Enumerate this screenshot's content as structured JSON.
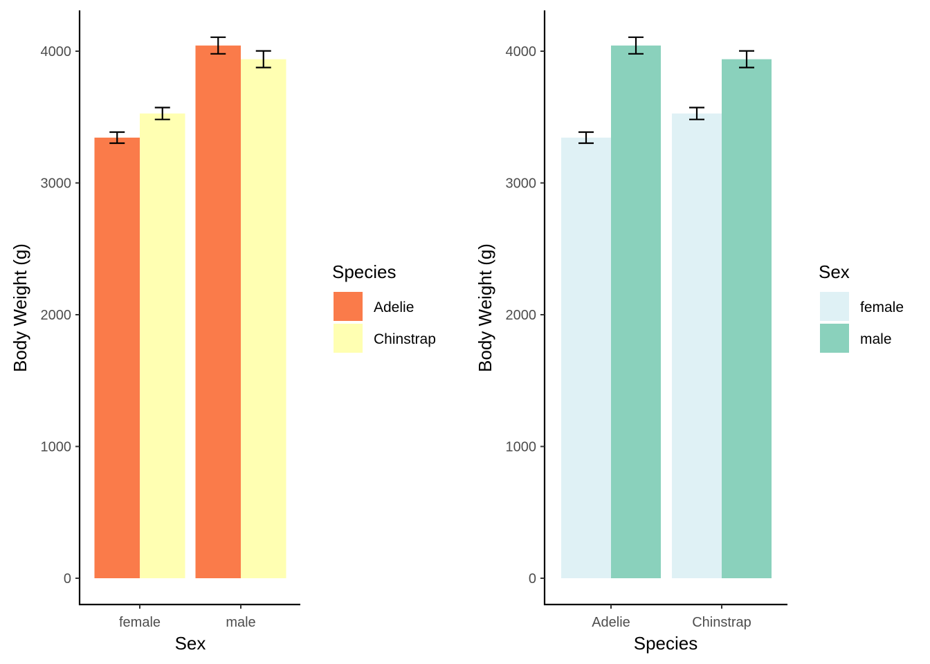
{
  "chart_data": [
    {
      "type": "bar",
      "title": "",
      "xlabel": "Sex",
      "ylabel": "Body Weight (g)",
      "categories": [
        "female",
        "male"
      ],
      "ylim": [
        0,
        4250
      ],
      "yticks": [
        0,
        1000,
        2000,
        3000,
        4000
      ],
      "ytick_labels": [
        "0",
        "1000",
        "2000",
        "3000",
        "4000"
      ],
      "grid": false,
      "legend": {
        "title": "Species",
        "placement": "right"
      },
      "series": [
        {
          "name": "Adelie",
          "color": "#FA7B4A",
          "values": [
            3344,
            4043
          ],
          "error": [
            42,
            63
          ]
        },
        {
          "name": "Chinstrap",
          "color": "#FFFFB2",
          "values": [
            3527,
            3939
          ],
          "error": [
            45,
            63
          ]
        }
      ]
    },
    {
      "type": "bar",
      "title": "",
      "xlabel": "Species",
      "ylabel": "Body Weight (g)",
      "categories": [
        "Adelie",
        "Chinstrap"
      ],
      "ylim": [
        0,
        4250
      ],
      "yticks": [
        0,
        1000,
        2000,
        3000,
        4000
      ],
      "ytick_labels": [
        "0",
        "1000",
        "2000",
        "3000",
        "4000"
      ],
      "grid": false,
      "legend": {
        "title": "Sex",
        "placement": "right"
      },
      "series": [
        {
          "name": "female",
          "color": "#DFF1F5",
          "values": [
            3344,
            3527
          ],
          "error": [
            42,
            45
          ]
        },
        {
          "name": "male",
          "color": "#8AD1BC",
          "values": [
            4043,
            3939
          ],
          "error": [
            63,
            63
          ]
        }
      ]
    }
  ]
}
